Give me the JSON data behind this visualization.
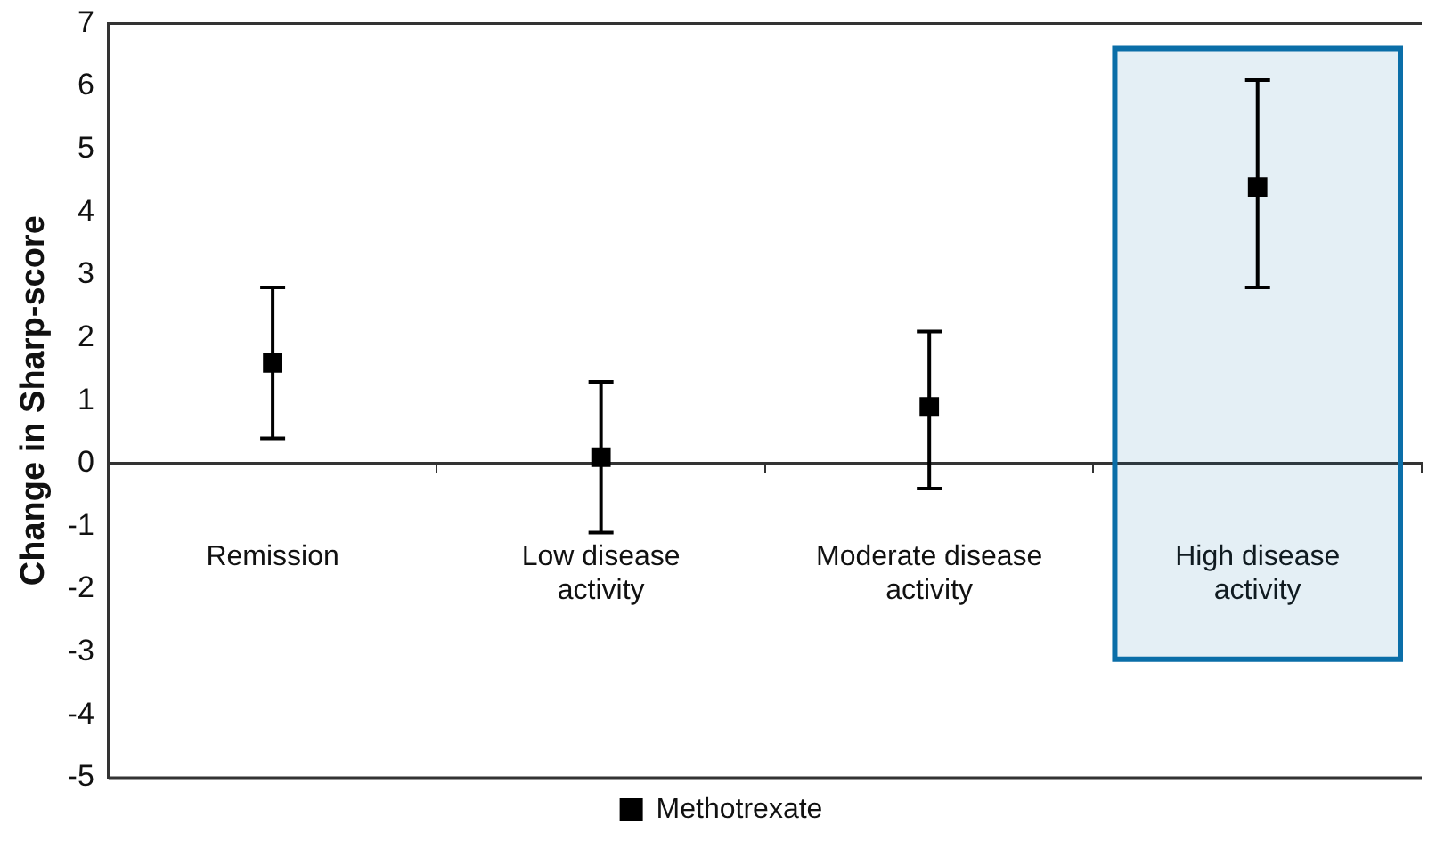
{
  "chart_data": {
    "type": "scatter",
    "ylabel": "Change in Sharp-score",
    "categories": [
      "Remission",
      "Low disease activity",
      "Moderate disease activity",
      "High disease activity"
    ],
    "series": [
      {
        "name": "Methotrexate",
        "color": "#000000",
        "values": [
          1.6,
          0.1,
          0.9,
          4.4
        ],
        "errors": [
          [
            0.4,
            2.8
          ],
          [
            -1.1,
            1.3
          ],
          [
            -0.4,
            2.1
          ],
          [
            2.8,
            6.1
          ]
        ]
      }
    ],
    "ylim": [
      -5,
      7
    ],
    "yticks": [
      -5,
      -4,
      -3,
      -2,
      -1,
      0,
      1,
      2,
      3,
      4,
      5,
      6,
      7
    ],
    "bands": [
      {
        "axis": "x",
        "from": "High disease activity",
        "to": "High disease activity",
        "color": "#0a6ea8"
      }
    ],
    "marker": "square",
    "legend": "bottom"
  }
}
